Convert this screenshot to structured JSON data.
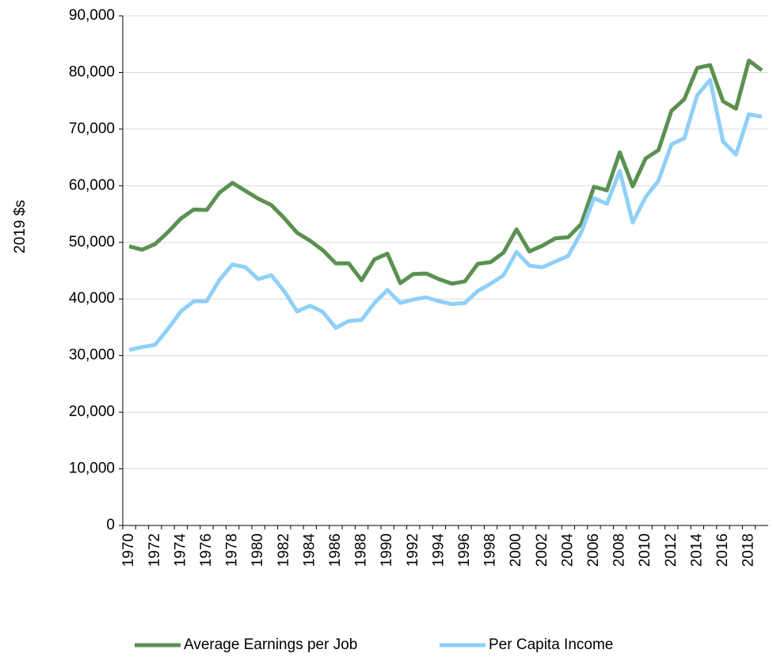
{
  "chart_data": {
    "type": "line",
    "y_label": "2019 $s",
    "categories": [
      "1970",
      null,
      "1972",
      null,
      "1974",
      null,
      "1976",
      null,
      "1978",
      null,
      "1980",
      null,
      "1982",
      null,
      "1984",
      null,
      "1986",
      null,
      "1988",
      null,
      "1990",
      null,
      "1992",
      null,
      "1994",
      null,
      "1996",
      null,
      "1998",
      null,
      "2000",
      null,
      "2002",
      null,
      "2004",
      null,
      "2006",
      null,
      "2008",
      null,
      "2010",
      null,
      "2012",
      null,
      "2014",
      null,
      "2016",
      null,
      "2018",
      null
    ],
    "series": [
      {
        "name": "Average Earnings per Job",
        "color": "#5b9150",
        "values": [
          49300,
          48700,
          49700,
          51800,
          54200,
          55800,
          55700,
          58800,
          60500,
          59100,
          57700,
          56600,
          54300,
          51700,
          50300,
          48600,
          46300,
          46300,
          43300,
          47000,
          48000,
          42800,
          44400,
          44500,
          43500,
          42700,
          43100,
          46200,
          46500,
          48200,
          52300,
          48400,
          49400,
          50700,
          50900,
          53200,
          59800,
          59200,
          65900,
          59900,
          64800,
          66300,
          73200,
          75300,
          80800,
          81300,
          74900,
          73600,
          82100,
          80400
        ]
      },
      {
        "name": "Per Capita Income",
        "color": "#8fd0f7",
        "values": [
          31000,
          31500,
          31900,
          34700,
          37800,
          39600,
          39600,
          43400,
          46100,
          45600,
          43500,
          44200,
          41400,
          37800,
          38800,
          37700,
          34900,
          36100,
          36300,
          39300,
          41600,
          39300,
          39900,
          40300,
          39600,
          39100,
          39300,
          41400,
          42700,
          44200,
          48300,
          45900,
          45600,
          46600,
          47600,
          51700,
          57800,
          56800,
          62600,
          53500,
          58000,
          60900,
          67300,
          68400,
          76000,
          78700,
          67800,
          65500,
          72600,
          72200
        ]
      }
    ],
    "ylim": [
      0,
      90000
    ],
    "yticks": [
      0,
      {
        "value": 10000,
        "label": "10,000"
      },
      {
        "value": 20000,
        "label": "20,000"
      },
      {
        "value": 30000,
        "label": "30,000"
      },
      {
        "value": 40000,
        "label": "40,000"
      },
      {
        "value": 50000,
        "label": "50,000"
      },
      {
        "value": 60000,
        "label": "60,000"
      },
      {
        "value": 70000,
        "label": "70,000"
      },
      {
        "value": 80000,
        "label": "80,000"
      },
      {
        "value": 90000,
        "label": "90,000"
      }
    ],
    "grid": true,
    "legend": "bottom"
  }
}
